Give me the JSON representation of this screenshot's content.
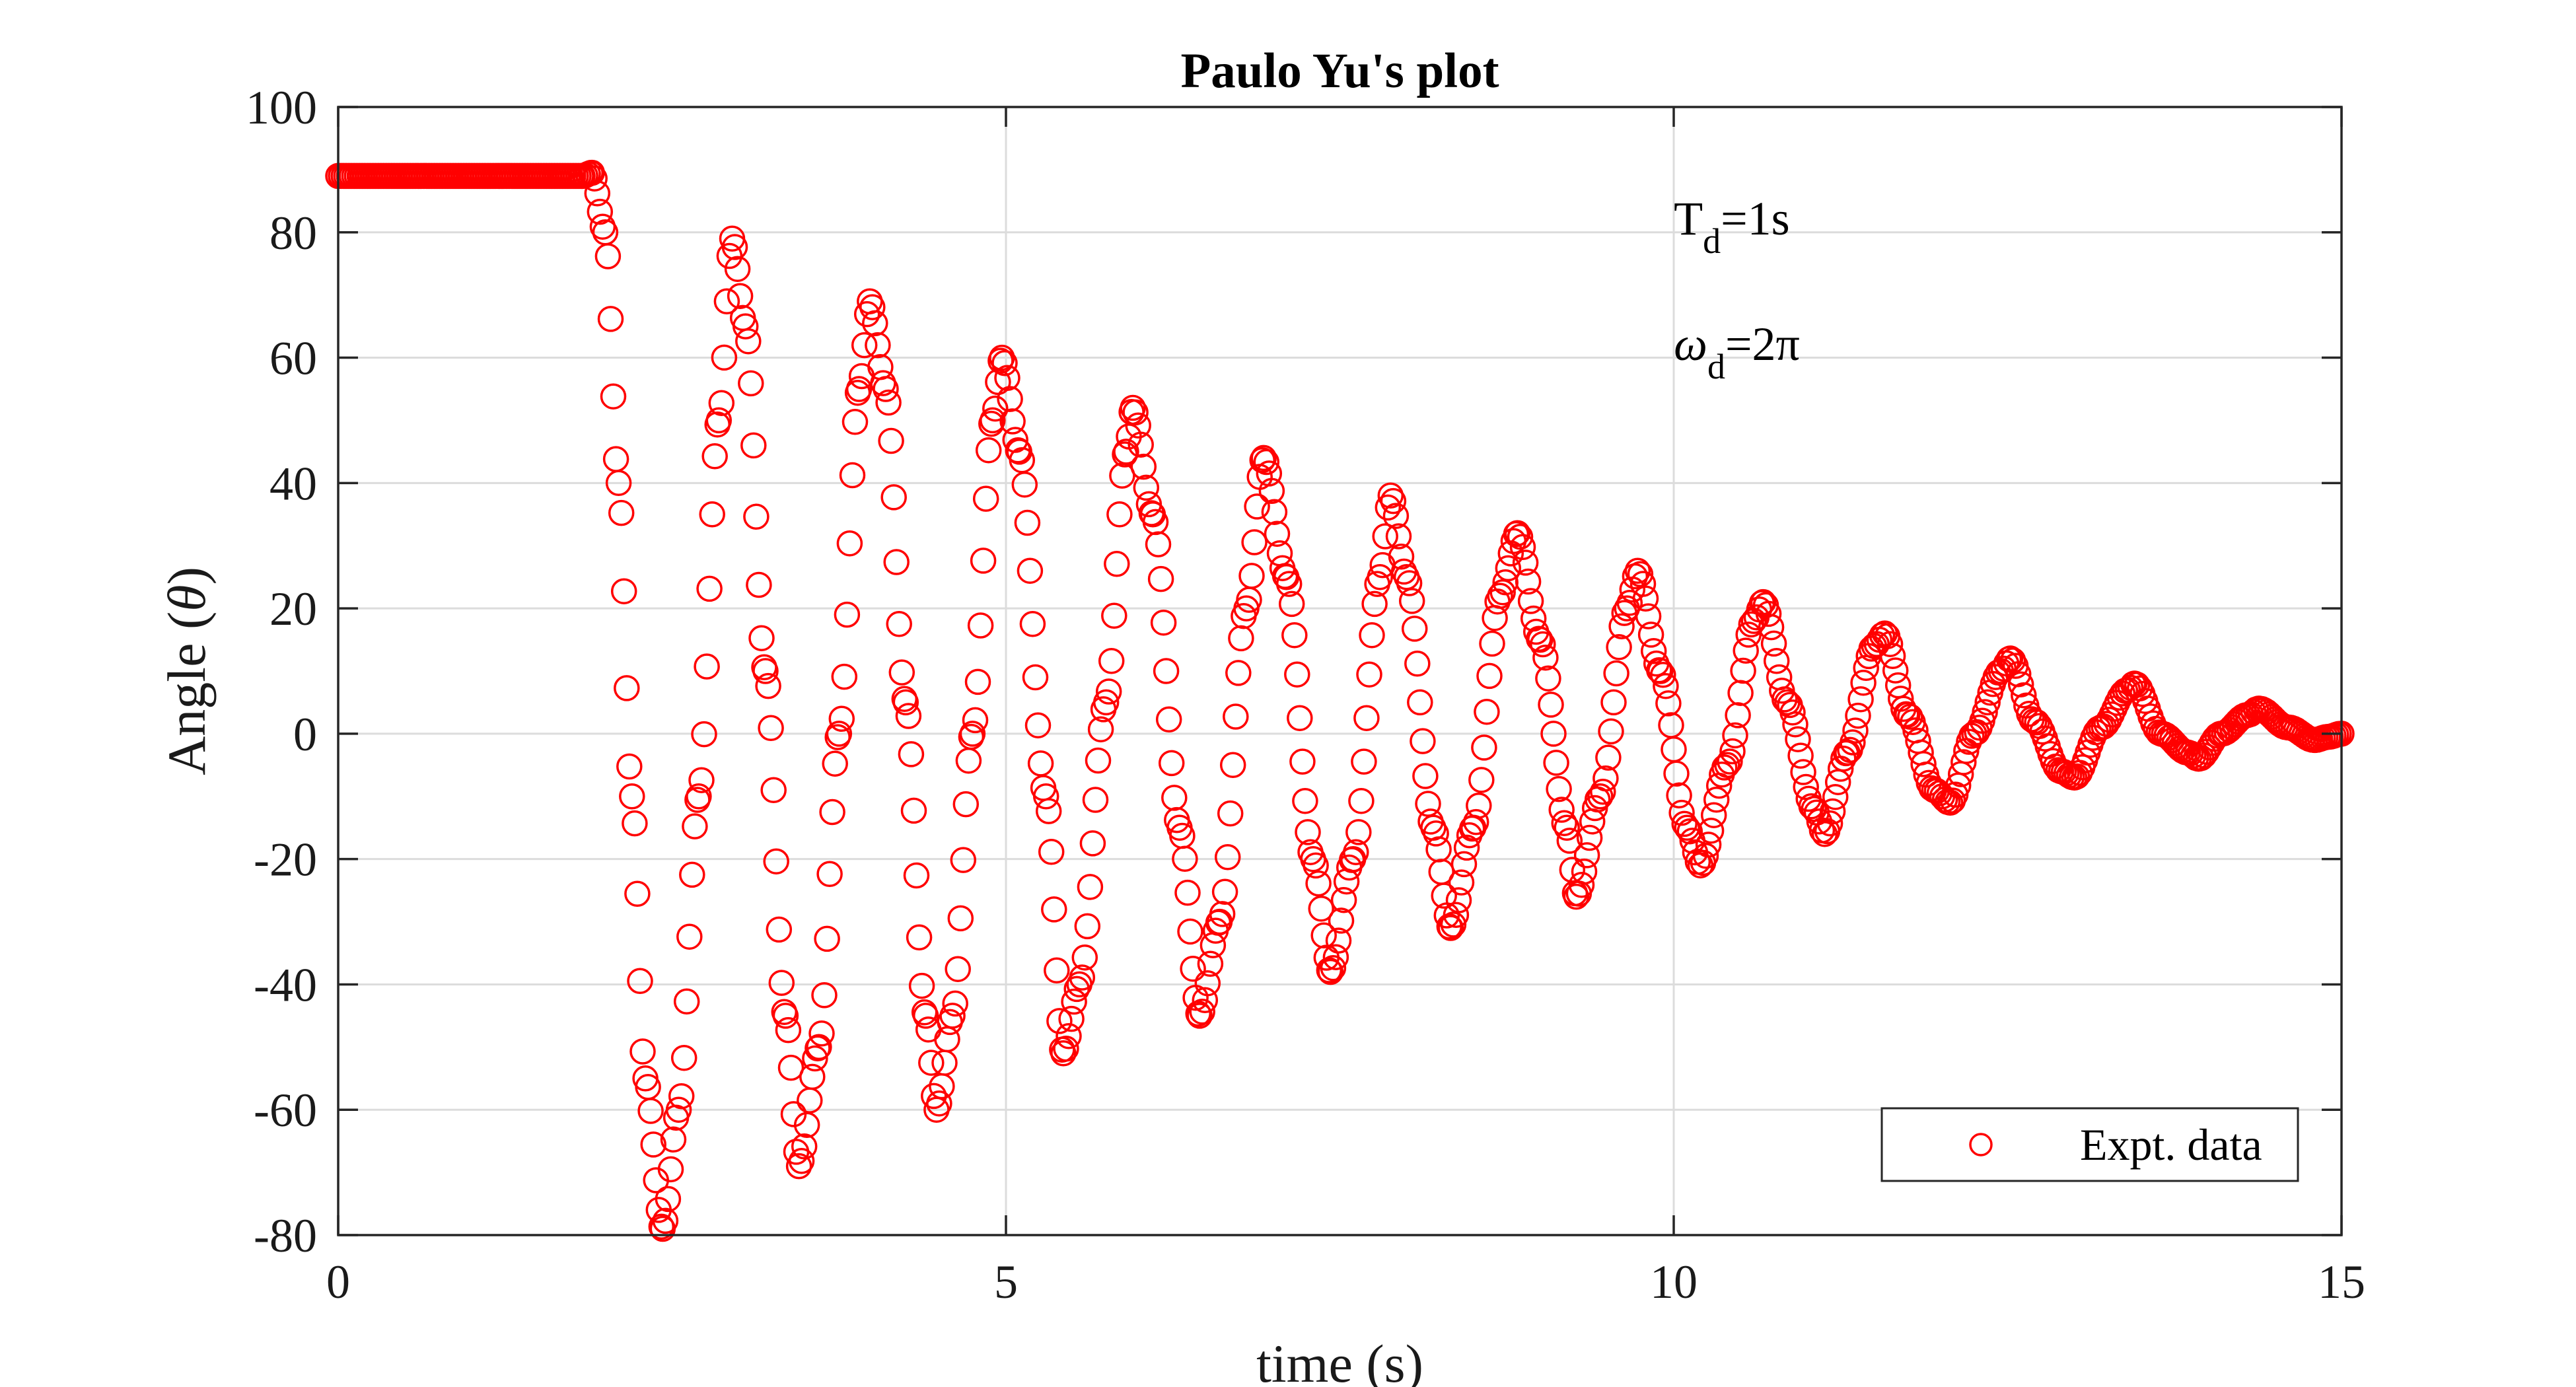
{
  "chart_data": {
    "type": "scatter",
    "title": "Paulo Yu's plot",
    "xlabel": "time (s)",
    "ylabel_text": "Angle (",
    "ylabel_symbol": "θ",
    "ylabel_close": ")",
    "xlim": [
      0,
      15
    ],
    "ylim": [
      -80,
      100
    ],
    "x_ticks": [
      0,
      5,
      10,
      15
    ],
    "y_ticks": [
      -80,
      -60,
      -40,
      -20,
      0,
      20,
      40,
      60,
      80,
      100
    ],
    "grid": true,
    "legend_position": "bottom-right",
    "marker": "open-circle",
    "series_color": "#ff0000",
    "annotations": [
      {
        "base": "T",
        "sub": "d",
        "rest": "=1s",
        "italic": false
      },
      {
        "base": "ω",
        "sub": "d",
        "rest": "=2π",
        "italic": true
      }
    ],
    "series": [
      {
        "name": "Expt. data",
        "points": [
          [
            0,
            89
          ],
          [
            0.5,
            89
          ],
          [
            1.0,
            89
          ],
          [
            1.5,
            89
          ],
          [
            1.83,
            89
          ],
          [
            1.9,
            89.5
          ],
          [
            2.0,
            80
          ],
          [
            2.1,
            40
          ],
          [
            2.2,
            -10
          ],
          [
            2.3,
            -55
          ],
          [
            2.43,
            -79
          ],
          [
            2.55,
            -60
          ],
          [
            2.7,
            -10
          ],
          [
            2.85,
            50
          ],
          [
            2.95,
            79
          ],
          [
            3.05,
            65
          ],
          [
            3.2,
            10
          ],
          [
            3.35,
            -45
          ],
          [
            3.45,
            -69
          ],
          [
            3.6,
            -50
          ],
          [
            3.75,
            0
          ],
          [
            3.9,
            55
          ],
          [
            3.98,
            69
          ],
          [
            4.1,
            55
          ],
          [
            4.25,
            5
          ],
          [
            4.4,
            -45
          ],
          [
            4.48,
            -60
          ],
          [
            4.6,
            -45
          ],
          [
            4.75,
            0
          ],
          [
            4.9,
            50
          ],
          [
            4.97,
            60
          ],
          [
            5.1,
            45
          ],
          [
            5.3,
            -10
          ],
          [
            5.43,
            -51
          ],
          [
            5.55,
            -40
          ],
          [
            5.75,
            5
          ],
          [
            5.9,
            45
          ],
          [
            5.95,
            52
          ],
          [
            6.1,
            35
          ],
          [
            6.3,
            -15
          ],
          [
            6.45,
            -45
          ],
          [
            6.6,
            -30
          ],
          [
            6.8,
            20
          ],
          [
            6.93,
            44
          ],
          [
            7.1,
            25
          ],
          [
            7.3,
            -20
          ],
          [
            7.43,
            -38
          ],
          [
            7.6,
            -20
          ],
          [
            7.8,
            25
          ],
          [
            7.88,
            38
          ],
          [
            8.0,
            25
          ],
          [
            8.2,
            -15
          ],
          [
            8.33,
            -31
          ],
          [
            8.5,
            -15
          ],
          [
            8.7,
            22
          ],
          [
            8.83,
            32
          ],
          [
            9.0,
            15
          ],
          [
            9.2,
            -15
          ],
          [
            9.27,
            -26
          ],
          [
            9.45,
            -10
          ],
          [
            9.65,
            20
          ],
          [
            9.73,
            26
          ],
          [
            9.9,
            10
          ],
          [
            10.1,
            -15
          ],
          [
            10.2,
            -21
          ],
          [
            10.4,
            -5
          ],
          [
            10.6,
            18
          ],
          [
            10.67,
            21
          ],
          [
            10.85,
            5
          ],
          [
            11.05,
            -12
          ],
          [
            11.13,
            -16
          ],
          [
            11.3,
            -3
          ],
          [
            11.5,
            14
          ],
          [
            11.58,
            16
          ],
          [
            11.75,
            3
          ],
          [
            11.95,
            -9
          ],
          [
            12.07,
            -11
          ],
          [
            12.25,
            0
          ],
          [
            12.45,
            10
          ],
          [
            12.52,
            12
          ],
          [
            12.7,
            2
          ],
          [
            12.9,
            -6
          ],
          [
            13.0,
            -7
          ],
          [
            13.2,
            1
          ],
          [
            13.4,
            7
          ],
          [
            13.45,
            8
          ],
          [
            13.65,
            0
          ],
          [
            13.85,
            -3
          ],
          [
            13.93,
            -4
          ],
          [
            14.1,
            0
          ],
          [
            14.3,
            3
          ],
          [
            14.38,
            4
          ],
          [
            14.6,
            1
          ],
          [
            14.8,
            -1
          ],
          [
            14.9,
            -0.5
          ],
          [
            15.0,
            0
          ]
        ]
      }
    ]
  }
}
